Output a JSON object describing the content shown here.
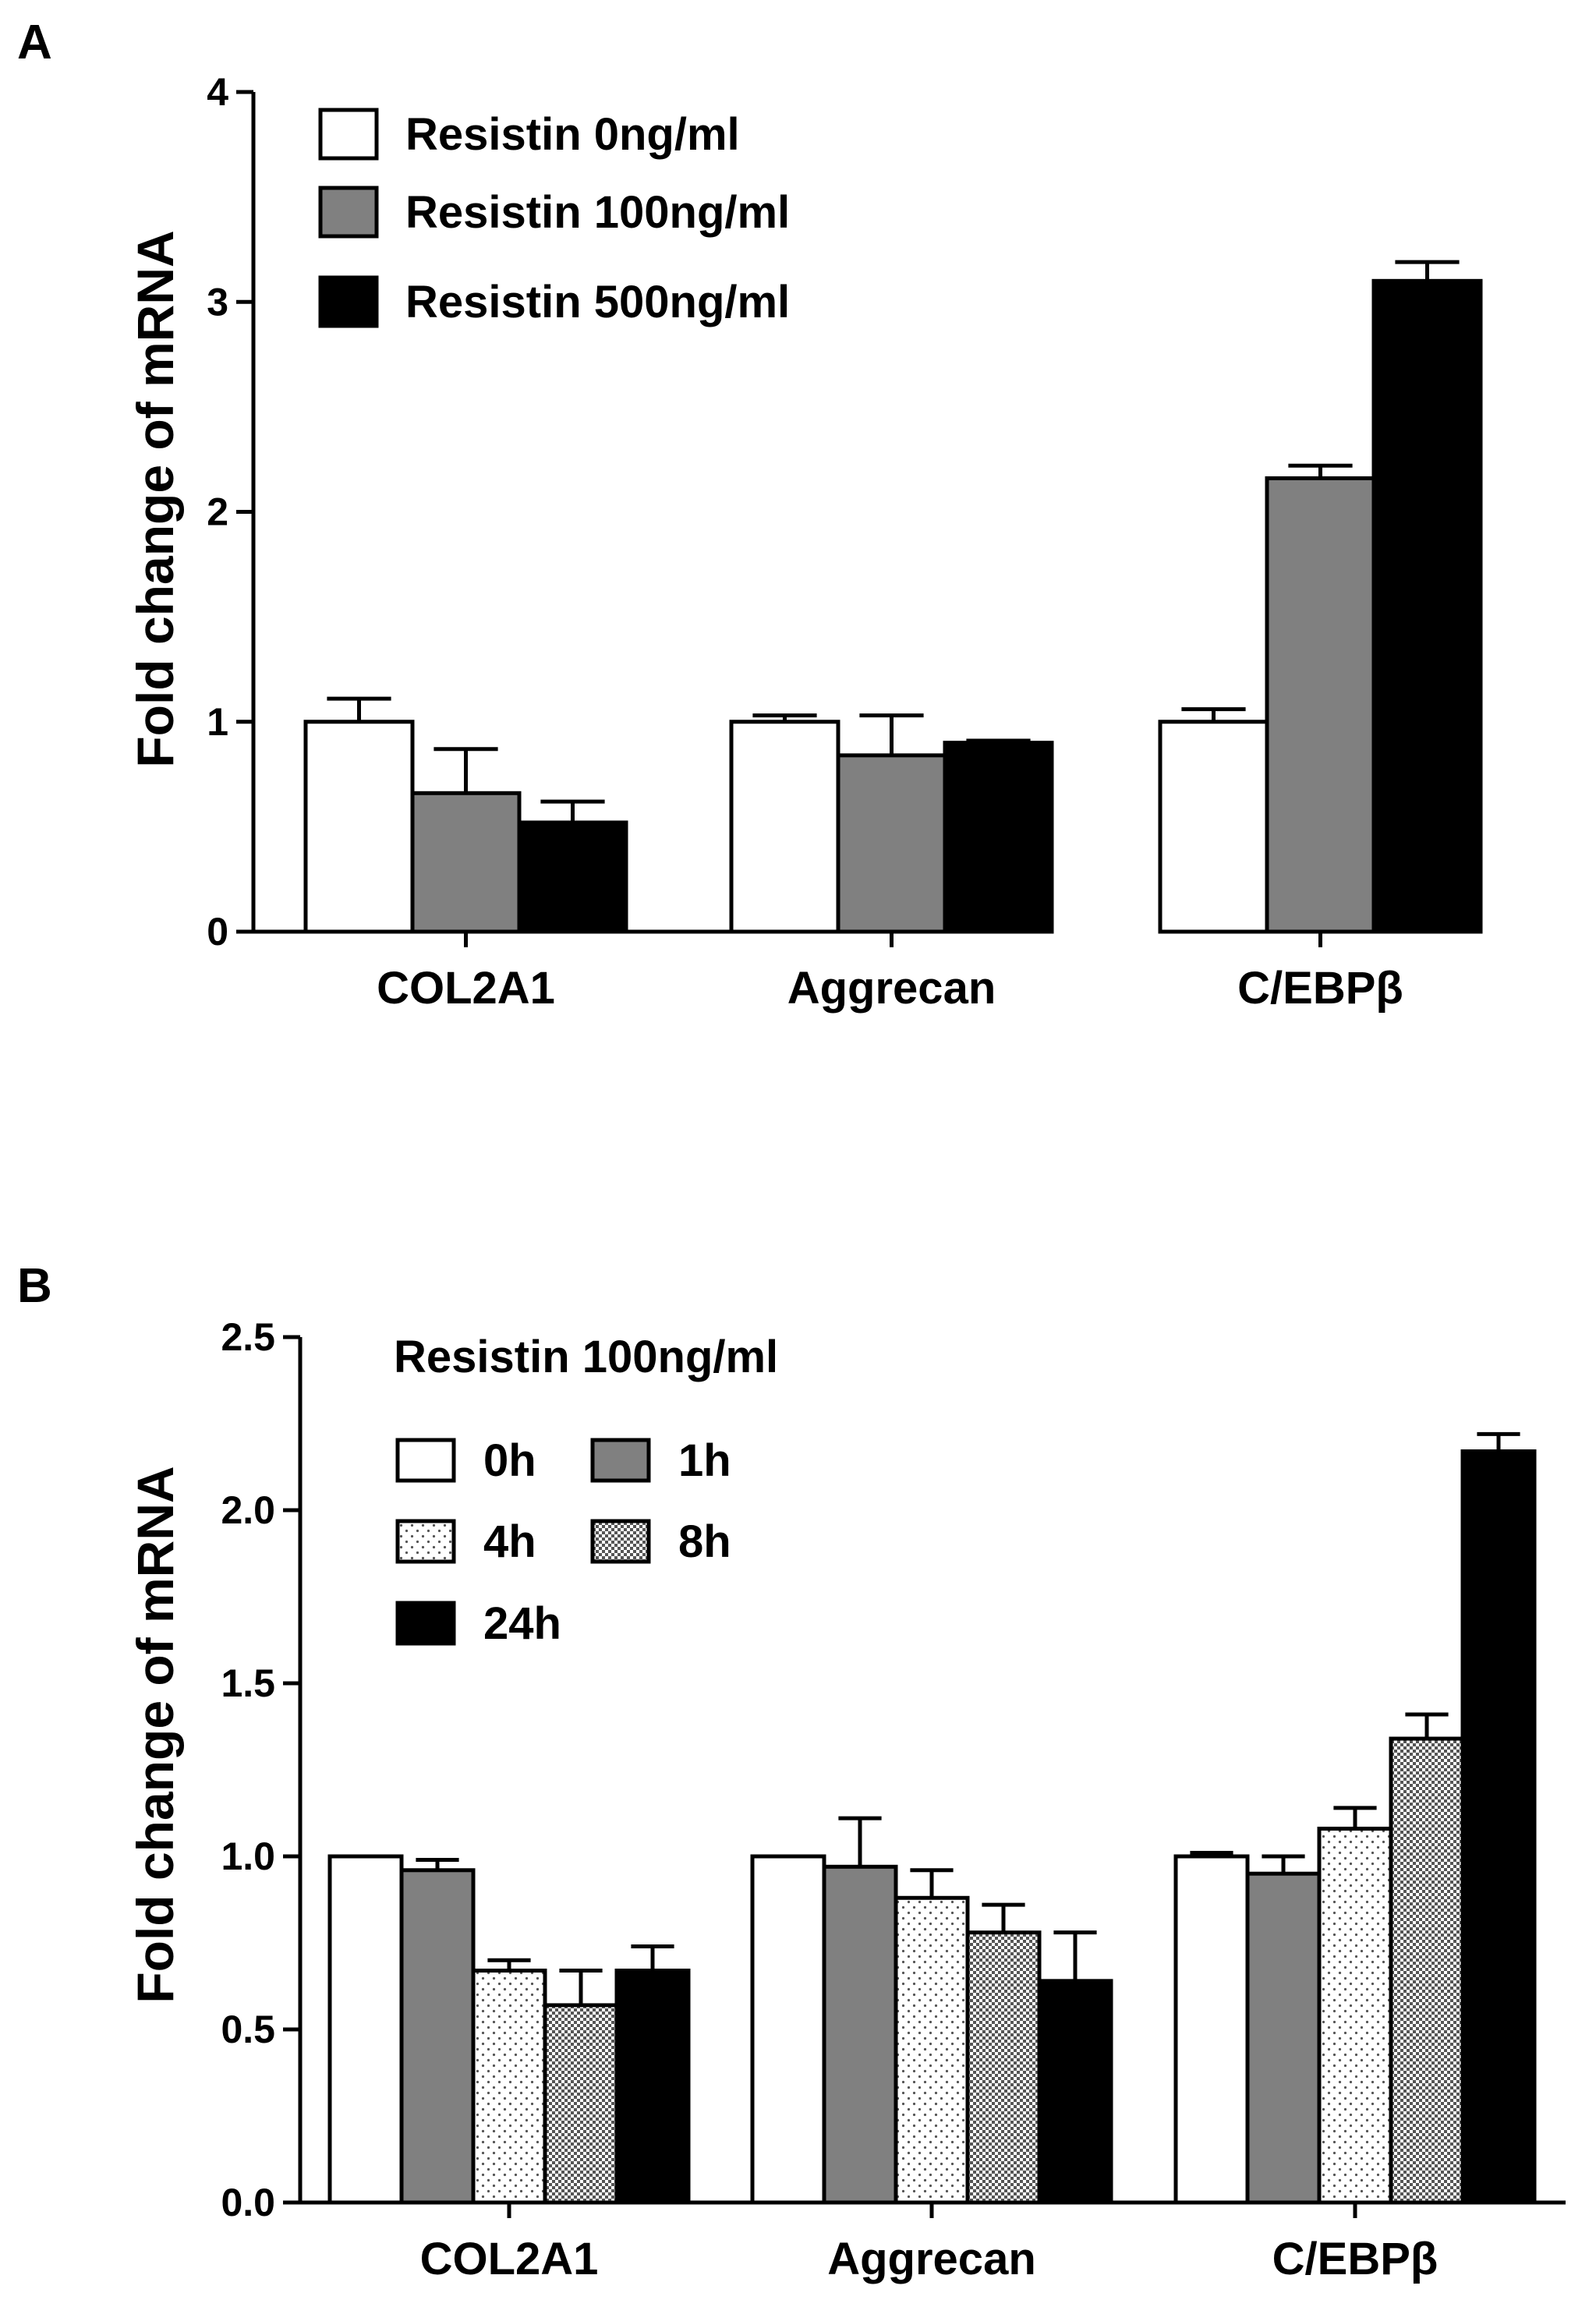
{
  "chart_data": [
    {
      "panel": "A",
      "type": "bar",
      "title": "",
      "xlabel": "",
      "ylabel": "Fold change of mRNA",
      "ylim": [
        0,
        4
      ],
      "yticks": [
        0,
        1,
        2,
        3,
        4
      ],
      "ytick_labels": [
        "0",
        "1",
        "2",
        "3",
        "4"
      ],
      "categories": [
        "COL2A1",
        "Aggrecan",
        "C/EBPβ"
      ],
      "legend_title": "",
      "series": [
        {
          "name": "Resistin 0ng/ml",
          "fill": "white",
          "values": [
            1.0,
            1.0,
            1.0
          ],
          "errors": [
            0.11,
            0.03,
            0.06
          ]
        },
        {
          "name": "Resistin 100ng/ml",
          "fill": "gray",
          "values": [
            0.66,
            0.84,
            2.16
          ],
          "errors": [
            0.21,
            0.19,
            0.06
          ]
        },
        {
          "name": "Resistin 500ng/ml",
          "fill": "black",
          "values": [
            0.52,
            0.9,
            3.1
          ],
          "errors": [
            0.1,
            0.01,
            0.09
          ]
        }
      ]
    },
    {
      "panel": "B",
      "type": "bar",
      "title": "",
      "xlabel": "",
      "ylabel": "Fold change of mRNA",
      "ylim": [
        0,
        2.5
      ],
      "yticks": [
        0,
        0.5,
        1.0,
        1.5,
        2.0,
        2.5
      ],
      "ytick_labels": [
        "0.0",
        "0.5",
        "1.0",
        "1.5",
        "2.0",
        "2.5"
      ],
      "categories": [
        "COL2A1",
        "Aggrecan",
        "C/EBPβ"
      ],
      "legend_title": "Resistin 100ng/ml",
      "series": [
        {
          "name": "0h",
          "fill": "white",
          "values": [
            1.0,
            1.0,
            1.0
          ],
          "errors": [
            0.0,
            0.0,
            0.01
          ]
        },
        {
          "name": "1h",
          "fill": "gray",
          "values": [
            0.96,
            0.97,
            0.95
          ],
          "errors": [
            0.03,
            0.14,
            0.05
          ]
        },
        {
          "name": "4h",
          "fill": "dots",
          "values": [
            0.67,
            0.88,
            1.08
          ],
          "errors": [
            0.03,
            0.08,
            0.06
          ]
        },
        {
          "name": "8h",
          "fill": "checker",
          "values": [
            0.57,
            0.78,
            1.34
          ],
          "errors": [
            0.1,
            0.08,
            0.07
          ]
        },
        {
          "name": "24h",
          "fill": "black",
          "values": [
            0.67,
            0.64,
            2.17
          ],
          "errors": [
            0.07,
            0.14,
            0.05
          ]
        }
      ]
    }
  ]
}
